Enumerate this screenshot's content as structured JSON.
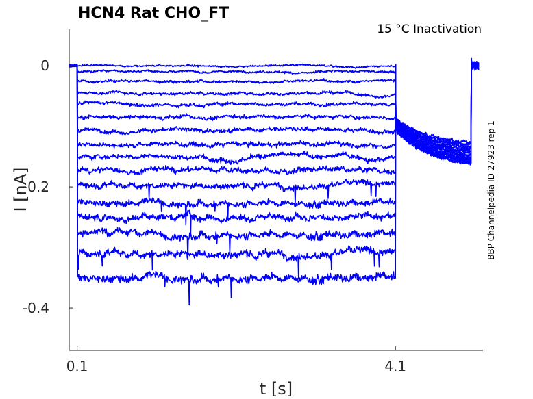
{
  "chart_data": {
    "type": "line",
    "title": "HCN4  Rat  CHO_FT",
    "annotation": "15 °C  Inactivation",
    "side_label": "BBP Channelpedia ID 27923 rep 1",
    "xlabel": "t [s]",
    "ylabel": "I [nA]",
    "x_ticks": [
      0.1,
      4.1
    ],
    "x_tick_labels": [
      "0.1",
      "4.1"
    ],
    "y_ticks": [
      0,
      -0.2,
      -0.4
    ],
    "y_tick_labels": [
      "0",
      "-0.2",
      "-0.4"
    ],
    "xlim": [
      0.0,
      5.2
    ],
    "ylim": [
      -0.47,
      0.06
    ],
    "grid": false,
    "color": "#0000ff",
    "protocol": {
      "baseline_start": 0.0,
      "step_start": 0.1,
      "step_end": 4.1,
      "tail_end": 5.05,
      "record_end": 5.15
    },
    "series": [
      {
        "hold": 0.0,
        "tail": -0.127
      },
      {
        "hold": -0.01,
        "tail": -0.13
      },
      {
        "hold": -0.025,
        "tail": -0.133
      },
      {
        "hold": -0.045,
        "tail": -0.136
      },
      {
        "hold": -0.063,
        "tail": -0.139
      },
      {
        "hold": -0.085,
        "tail": -0.142
      },
      {
        "hold": -0.106,
        "tail": -0.145
      },
      {
        "hold": -0.13,
        "tail": -0.148
      },
      {
        "hold": -0.15,
        "tail": -0.15
      },
      {
        "hold": -0.173,
        "tail": -0.152
      },
      {
        "hold": -0.197,
        "tail": -0.154
      },
      {
        "hold": -0.225,
        "tail": -0.156
      },
      {
        "hold": -0.248,
        "tail": -0.158
      },
      {
        "hold": -0.277,
        "tail": -0.16
      },
      {
        "hold": -0.31,
        "tail": -0.16
      },
      {
        "hold": -0.348,
        "tail": -0.161
      }
    ]
  }
}
